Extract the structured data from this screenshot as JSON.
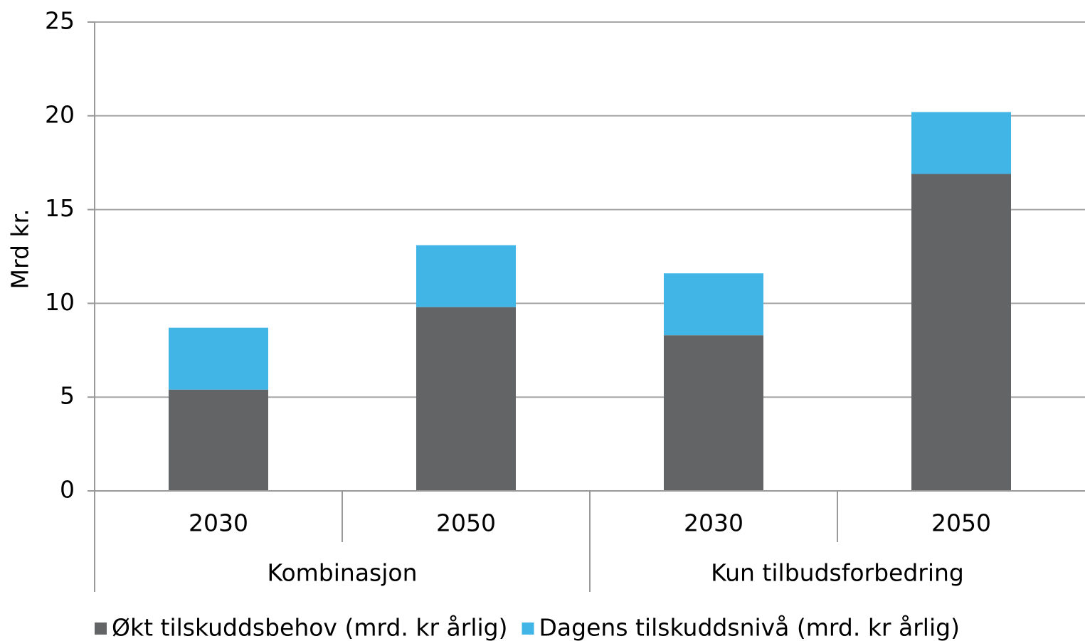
{
  "chart_data": {
    "type": "stacked_bar",
    "y_label": "Mrd kr.",
    "categories": [
      "2030",
      "2050",
      "2030",
      "2050"
    ],
    "groups": [
      "Kombinasjon",
      "Kun tilbudsforbedring"
    ],
    "series": [
      {
        "name": "Økt tilskuddsbehov (mrd. kr årlig)",
        "color": "#636466",
        "values": [
          5.4,
          9.8,
          8.3,
          16.9
        ]
      },
      {
        "name": "Dagens tilskuddsnivå (mrd. kr årlig)",
        "color": "#41b6e6",
        "values": [
          3.3,
          3.3,
          3.3,
          3.3
        ]
      }
    ],
    "ylim": [
      0,
      25
    ],
    "yticks": [
      0,
      5,
      10,
      15,
      20,
      25
    ],
    "grid": true
  }
}
